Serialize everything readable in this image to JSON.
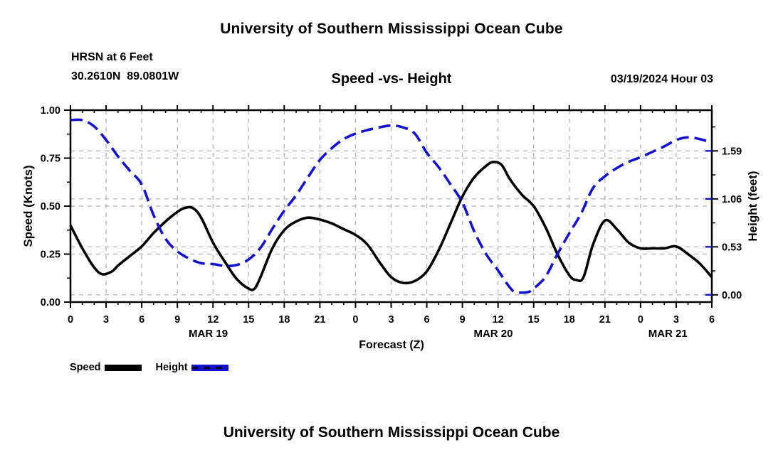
{
  "header": {
    "top_title": "University of Southern Mississippi Ocean Cube",
    "station_line1": "HRSN at 6 Feet",
    "station_line2": "30.2610N  89.0801W",
    "chart_title": "Speed -vs- Height",
    "run_label": "03/19/2024 Hour 03"
  },
  "footer": {
    "bottom_title": "University of Southern Mississippi Ocean Cube"
  },
  "legend": {
    "items": [
      {
        "label": "Speed",
        "color": "#000000",
        "style": "solid"
      },
      {
        "label": "Height",
        "color": "#1212d0",
        "style": "dashed"
      }
    ]
  },
  "colors": {
    "speed_line": "#000000",
    "height_line": "#1212d0",
    "grid": "#b9b9b9",
    "frame": "#000000"
  },
  "chart_data": {
    "type": "line",
    "title": "Speed -vs- Height",
    "xlabel": "Forecast (Z)",
    "x_range_hours": [
      0,
      54
    ],
    "x_major_tick_every_hours": 3,
    "x_minor_tick_every_hours": 1,
    "x_tick_labels": [
      "0",
      "3",
      "6",
      "9",
      "12",
      "15",
      "18",
      "21",
      "0",
      "3",
      "6",
      "9",
      "12",
      "15",
      "18",
      "21",
      "0",
      "3",
      "6"
    ],
    "x_day_labels": [
      {
        "label": "MAR 19",
        "hour": 11.6
      },
      {
        "label": "MAR 20",
        "hour": 35.6
      },
      {
        "label": "MAR 21",
        "hour": 50.3
      }
    ],
    "left_axis": {
      "label": "Speed (Knots)",
      "min": 0,
      "max": 1,
      "tick_labels": [
        "0.00",
        "0.25",
        "0.50",
        "0.75",
        "1.00"
      ],
      "tick_values": [
        0,
        0.25,
        0.5,
        0.75,
        1
      ],
      "minor_tick_values": [
        0.125,
        0.375,
        0.625,
        0.875
      ],
      "grid_values": [
        0.25,
        0.5,
        0.75
      ]
    },
    "right_axis": {
      "label": "Height (feet)",
      "value_at_bottom": -0.08,
      "value_at_top": 2.04,
      "tick_labels": [
        "0.00",
        "0.53",
        "1.06",
        "1.59"
      ],
      "tick_values": [
        0,
        0.53,
        1.06,
        1.59
      ],
      "minor_tick_values": [
        0.265,
        0.795,
        1.325,
        1.855
      ],
      "grid_values": [
        0,
        0.53,
        1.06,
        1.59
      ]
    },
    "grid_on": true,
    "legend_position": "bottom-left",
    "series": [
      {
        "name": "Speed",
        "axis": "left",
        "color": "#000000",
        "style": "solid",
        "points": [
          [
            0,
            0.4
          ],
          [
            1,
            0.28
          ],
          [
            2,
            0.18
          ],
          [
            2.7,
            0.145
          ],
          [
            3.5,
            0.16
          ],
          [
            4,
            0.19
          ],
          [
            5,
            0.24
          ],
          [
            6,
            0.29
          ],
          [
            7,
            0.36
          ],
          [
            8,
            0.42
          ],
          [
            9,
            0.47
          ],
          [
            9.6,
            0.49
          ],
          [
            10.3,
            0.49
          ],
          [
            11,
            0.44
          ],
          [
            12,
            0.31
          ],
          [
            13,
            0.21
          ],
          [
            14,
            0.12
          ],
          [
            15,
            0.07
          ],
          [
            15.5,
            0.07
          ],
          [
            16,
            0.13
          ],
          [
            17,
            0.28
          ],
          [
            18,
            0.375
          ],
          [
            19,
            0.42
          ],
          [
            20,
            0.44
          ],
          [
            21,
            0.43
          ],
          [
            22,
            0.41
          ],
          [
            23,
            0.38
          ],
          [
            24,
            0.35
          ],
          [
            25,
            0.3
          ],
          [
            26,
            0.21
          ],
          [
            27,
            0.13
          ],
          [
            28,
            0.1
          ],
          [
            29,
            0.11
          ],
          [
            30,
            0.16
          ],
          [
            31,
            0.27
          ],
          [
            32,
            0.41
          ],
          [
            33,
            0.55
          ],
          [
            34,
            0.65
          ],
          [
            35,
            0.71
          ],
          [
            35.6,
            0.73
          ],
          [
            36.3,
            0.715
          ],
          [
            37,
            0.64
          ],
          [
            38,
            0.56
          ],
          [
            39,
            0.5
          ],
          [
            40,
            0.39
          ],
          [
            41,
            0.25
          ],
          [
            42,
            0.14
          ],
          [
            42.6,
            0.115
          ],
          [
            43.2,
            0.13
          ],
          [
            44,
            0.3
          ],
          [
            45,
            0.425
          ],
          [
            46,
            0.38
          ],
          [
            47,
            0.31
          ],
          [
            48,
            0.28
          ],
          [
            49,
            0.28
          ],
          [
            50,
            0.28
          ],
          [
            51,
            0.29
          ],
          [
            52,
            0.25
          ],
          [
            53,
            0.2
          ],
          [
            54,
            0.13
          ]
        ]
      },
      {
        "name": "Height",
        "axis": "right",
        "color": "#1212d0",
        "style": "dashed",
        "points": [
          [
            0,
            1.93
          ],
          [
            1,
            1.93
          ],
          [
            2,
            1.86
          ],
          [
            3,
            1.71
          ],
          [
            4,
            1.53
          ],
          [
            5,
            1.37
          ],
          [
            6,
            1.22
          ],
          [
            7,
            0.88
          ],
          [
            8,
            0.62
          ],
          [
            9,
            0.48
          ],
          [
            10,
            0.4
          ],
          [
            11,
            0.35
          ],
          [
            12,
            0.34
          ],
          [
            13,
            0.32
          ],
          [
            14,
            0.33
          ],
          [
            15,
            0.39
          ],
          [
            16,
            0.52
          ],
          [
            17,
            0.73
          ],
          [
            18,
            0.93
          ],
          [
            19,
            1.1
          ],
          [
            20,
            1.3
          ],
          [
            21,
            1.49
          ],
          [
            22,
            1.62
          ],
          [
            23,
            1.72
          ],
          [
            24,
            1.78
          ],
          [
            25,
            1.82
          ],
          [
            26,
            1.85
          ],
          [
            27,
            1.87
          ],
          [
            28,
            1.85
          ],
          [
            29,
            1.78
          ],
          [
            30,
            1.57
          ],
          [
            31,
            1.41
          ],
          [
            32,
            1.22
          ],
          [
            33,
            1.02
          ],
          [
            34,
            0.7
          ],
          [
            35,
            0.45
          ],
          [
            36,
            0.27
          ],
          [
            37,
            0.08
          ],
          [
            37.5,
            0.03
          ],
          [
            38.5,
            0.03
          ],
          [
            39,
            0.07
          ],
          [
            40,
            0.2
          ],
          [
            41,
            0.45
          ],
          [
            42,
            0.68
          ],
          [
            43,
            0.9
          ],
          [
            44,
            1.18
          ],
          [
            45,
            1.31
          ],
          [
            46,
            1.4
          ],
          [
            47,
            1.47
          ],
          [
            48,
            1.52
          ],
          [
            49,
            1.58
          ],
          [
            50,
            1.64
          ],
          [
            51,
            1.71
          ],
          [
            52,
            1.74
          ],
          [
            53,
            1.72
          ],
          [
            54,
            1.68
          ]
        ]
      }
    ]
  }
}
